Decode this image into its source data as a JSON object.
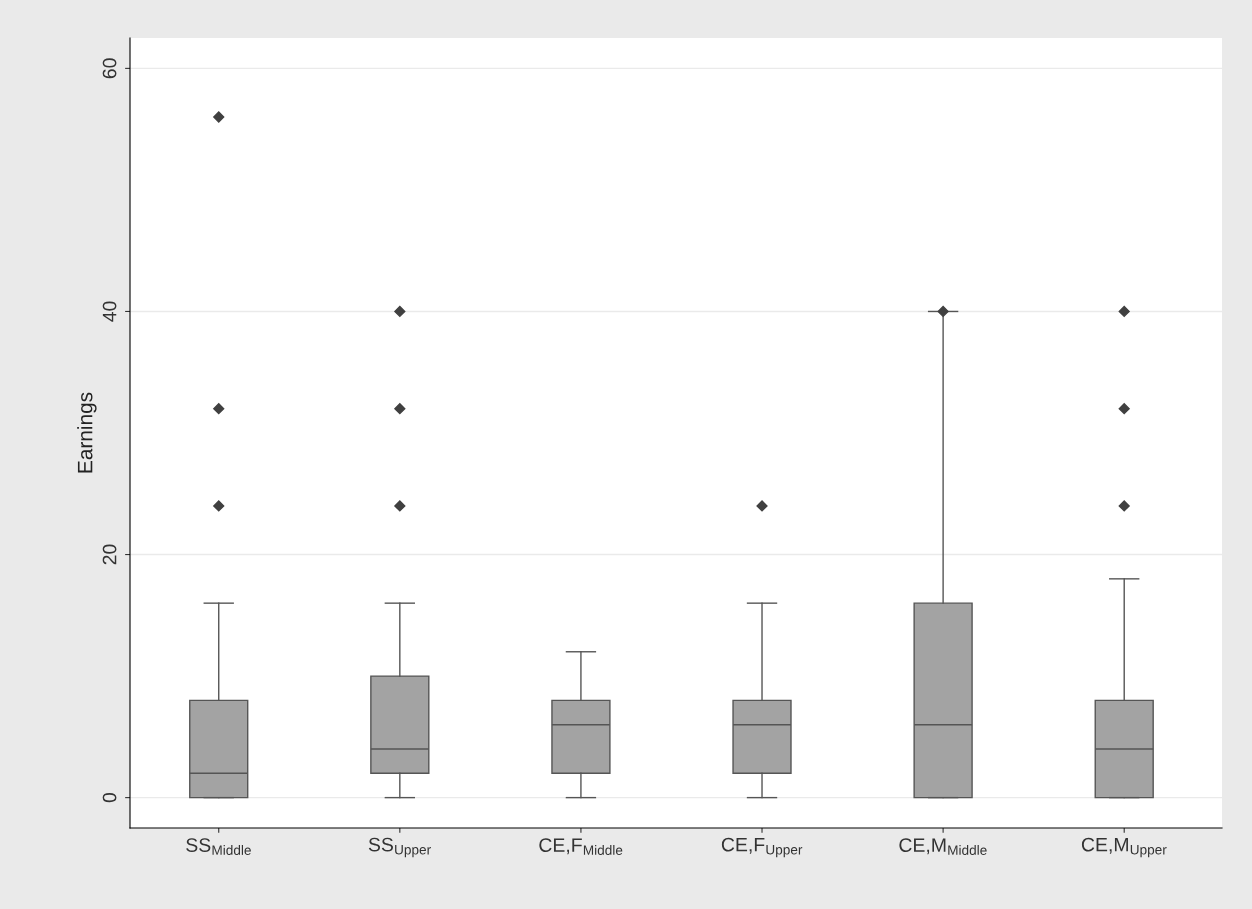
{
  "chart_data": {
    "type": "box",
    "ylabel": "Earnings",
    "categories": [
      "SS$_{Middle}$",
      "SS$_{Upper}$",
      "CE,F$_{Middle}$",
      "CE,F$_{Upper}$",
      "CE,M$_{Middle}$",
      "CE,M$_{Upper}$"
    ],
    "boxes": [
      {
        "low": 0,
        "q1": 0,
        "median": 2,
        "q3": 8,
        "high": 16,
        "outliers": [
          24,
          32,
          56
        ]
      },
      {
        "low": 0,
        "q1": 2,
        "median": 4,
        "q3": 10,
        "high": 16,
        "outliers": [
          24,
          32,
          40
        ]
      },
      {
        "low": 0,
        "q1": 2,
        "median": 6,
        "q3": 8,
        "high": 12
      },
      {
        "low": 0,
        "q1": 2,
        "median": 6,
        "q3": 8,
        "high": 16,
        "outliers": [
          24
        ]
      },
      {
        "low": 0,
        "q1": 0,
        "median": 6,
        "q3": 16,
        "high": 40,
        "outliers": [
          40
        ]
      },
      {
        "low": 0,
        "q1": 0,
        "median": 4,
        "q3": 8,
        "high": 18,
        "outliers": [
          24,
          32,
          40
        ]
      }
    ],
    "color": "#a3a3a3",
    "ylim": [
      -2.5,
      62.5
    ],
    "yticks": [
      0,
      20,
      40,
      60
    ],
    "grid": "y",
    "marker": "diamond"
  }
}
